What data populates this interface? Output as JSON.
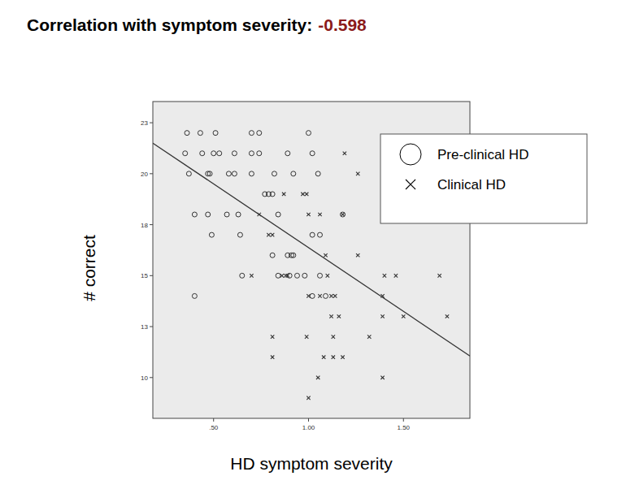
{
  "chart_data": {
    "type": "scatter",
    "title": "Correlation with symptom severity:",
    "correlation": -0.598,
    "correlation_color": "#8b1a1a",
    "x_label": "HD symptom severity",
    "y_label": "# correct",
    "xlim": [
      0.18,
      1.85
    ],
    "ylim": [
      8,
      23.54
    ],
    "xticks": [
      {
        "value": 0.5,
        "label": ".50"
      },
      {
        "value": 1.0,
        "label": "1.00"
      },
      {
        "value": 1.5,
        "label": "1.50"
      }
    ],
    "yticks": [
      10,
      {
        "value": 12.5,
        "label": "13"
      },
      15,
      {
        "value": 17.5,
        "label": "18"
      },
      20,
      {
        "value": 22.5,
        "label": "23"
      }
    ],
    "grid": false,
    "legend": "top-right",
    "series": [
      {
        "name": "Pre-clinical HD",
        "marker": "circle",
        "color": "#333333",
        "x": [
          0.36,
          0.43,
          0.51,
          0.7,
          0.74,
          1.0,
          0.35,
          0.44,
          0.5,
          0.53,
          0.61,
          0.7,
          0.74,
          0.89,
          1.02,
          0.37,
          0.47,
          0.48,
          0.58,
          0.61,
          0.7,
          0.82,
          0.92,
          1.05,
          0.77,
          0.79,
          0.81,
          0.4,
          0.47,
          0.57,
          0.63,
          0.84,
          1.18,
          0.49,
          0.64,
          1.02,
          1.06,
          0.81,
          0.89,
          0.91,
          0.92,
          0.65,
          0.84,
          0.9,
          0.94,
          0.98,
          1.06,
          0.4,
          1.02,
          1.09
        ],
        "values": [
          22,
          22,
          22,
          22,
          22,
          22,
          21,
          21,
          21,
          21,
          21,
          21,
          21,
          21,
          21,
          20,
          20,
          20,
          20,
          20,
          20,
          20,
          20,
          20,
          19,
          19,
          19,
          18,
          18,
          18,
          18,
          18,
          18,
          17,
          17,
          17,
          17,
          16,
          16,
          16,
          16,
          15,
          15,
          15,
          15,
          15,
          15,
          14,
          14,
          14
        ]
      },
      {
        "name": "Clinical HD",
        "marker": "x",
        "color": "#333333",
        "x": [
          1.19,
          1.26,
          0.87,
          0.97,
          0.99,
          0.74,
          1.0,
          1.06,
          1.18,
          0.79,
          0.81,
          1.09,
          1.26,
          0.7,
          0.86,
          0.88,
          0.89,
          1.1,
          1.4,
          1.46,
          1.69,
          1.0,
          1.06,
          1.12,
          1.14,
          1.39,
          1.12,
          1.16,
          1.39,
          1.5,
          1.73,
          0.81,
          0.99,
          1.13,
          1.32,
          0.81,
          1.08,
          1.13,
          1.18,
          1.05,
          1.39,
          1.0
        ],
        "values": [
          21,
          20,
          19,
          19,
          19,
          18,
          18,
          18,
          18,
          17,
          17,
          16,
          16,
          15,
          15,
          15,
          15,
          15,
          15,
          15,
          15,
          14,
          14,
          14,
          14,
          14,
          13,
          13,
          13,
          13,
          13,
          12,
          12,
          12,
          12,
          11,
          11,
          11,
          11,
          10,
          10,
          9
        ]
      }
    ],
    "fit": {
      "x": [
        0.18,
        1.85
      ],
      "values": [
        21.5,
        11.06
      ]
    }
  }
}
